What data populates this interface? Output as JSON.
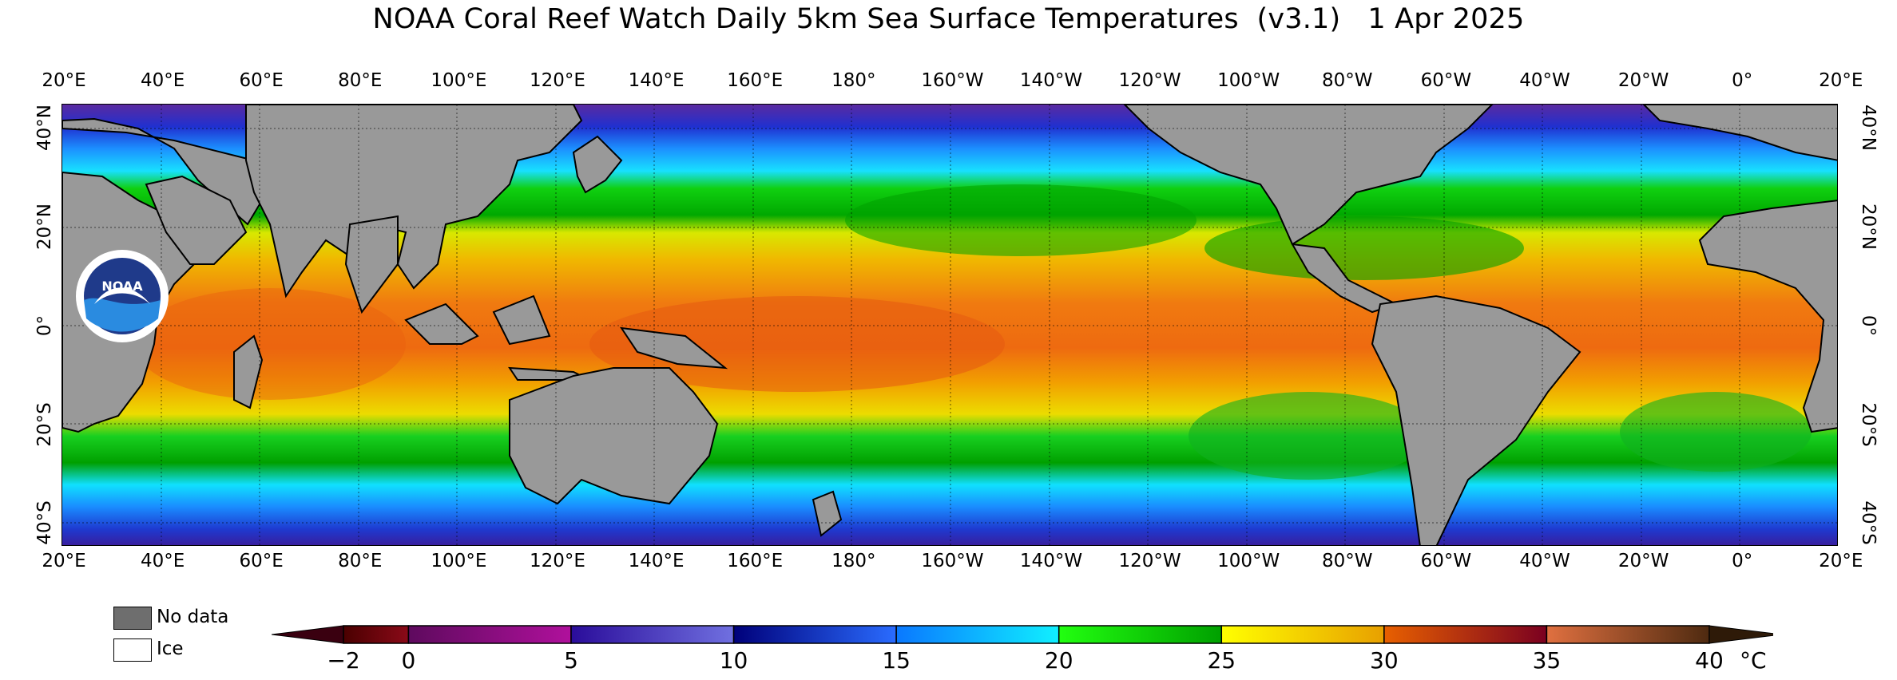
{
  "title": "NOAA Coral Reef Watch Daily 5km Sea Surface Temperatures  (v3.1)   1 Apr 2025",
  "map": {
    "projection": "equirectangular",
    "lon_range_deg": [
      20,
      380
    ],
    "lat_range_deg": [
      -45,
      45
    ],
    "longitude_labels": [
      "20°E",
      "40°E",
      "60°E",
      "80°E",
      "100°E",
      "120°E",
      "140°E",
      "160°E",
      "180°",
      "160°W",
      "140°W",
      "120°W",
      "100°W",
      "80°W",
      "60°W",
      "40°W",
      "20°W",
      "0°",
      "20°E"
    ],
    "latitude_labels": [
      "40°N",
      "20°N",
      "0°",
      "20°S",
      "40°S"
    ],
    "land_color": "#999999",
    "logo_text": "NOAA",
    "variable": "Sea Surface Temperature"
  },
  "legend": {
    "no_data_label": "No data",
    "no_data_color": "#6e6e6e",
    "ice_label": "Ice",
    "ice_color": "#ffffff"
  },
  "colorbar": {
    "min": -2,
    "max": 40,
    "ticks": [
      "−2",
      "0",
      "5",
      "10",
      "15",
      "20",
      "25",
      "30",
      "35",
      "40"
    ],
    "tick_values": [
      -2,
      0,
      5,
      10,
      15,
      20,
      25,
      30,
      35,
      40
    ],
    "unit": "°C",
    "segments": [
      {
        "from": -2,
        "to": 0,
        "colors": [
          "#4a0000",
          "#8a0a18"
        ]
      },
      {
        "from": 0,
        "to": 5,
        "colors": [
          "#5e0a5e",
          "#b0109c"
        ]
      },
      {
        "from": 5,
        "to": 10,
        "colors": [
          "#2a0c9a",
          "#7070e0"
        ]
      },
      {
        "from": 10,
        "to": 15,
        "colors": [
          "#00007a",
          "#2a6cff"
        ]
      },
      {
        "from": 15,
        "to": 20,
        "colors": [
          "#0a78ff",
          "#10f0ff"
        ]
      },
      {
        "from": 20,
        "to": 25,
        "colors": [
          "#22ff10",
          "#00a000"
        ]
      },
      {
        "from": 25,
        "to": 30,
        "colors": [
          "#ffff00",
          "#e8a000"
        ]
      },
      {
        "from": 30,
        "to": 35,
        "colors": [
          "#e86000",
          "#7a0020"
        ]
      },
      {
        "from": 35,
        "to": 40,
        "colors": [
          "#e07040",
          "#4e2a10"
        ]
      }
    ],
    "below_color": "#3a0010",
    "above_color": "#2e1a08"
  }
}
